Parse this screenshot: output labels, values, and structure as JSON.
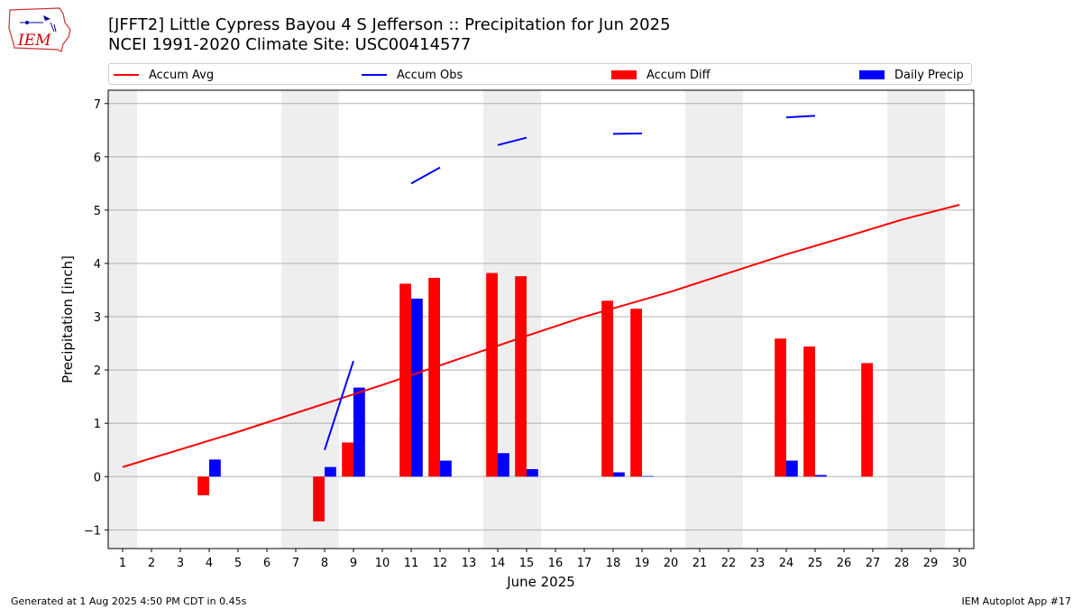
{
  "header": {
    "logo_text": "IEM",
    "title_line1": "[JFFT2] Little Cypress Bayou 4 S Jefferson :: Precipitation for Jun 2025",
    "title_line2": "NCEI 1991-2020 Climate Site: USC00414577"
  },
  "legend": {
    "accum_avg": "Accum Avg",
    "accum_obs": "Accum Obs",
    "accum_diff": "Accum Diff",
    "daily_precip": "Daily Precip"
  },
  "footer": {
    "generated": "Generated at 1 Aug 2025 4:50 PM CDT in 0.45s",
    "app": "IEM Autoplot App #17"
  },
  "colors": {
    "avg": "#ff0000",
    "obs": "#0000ff",
    "diff": "#ff0000",
    "daily": "#0000ff",
    "weekend_band": "#eeeeee",
    "grid": "#b0b0b0"
  },
  "chart_data": {
    "type": "bar",
    "title": "[JFFT2] Little Cypress Bayou 4 S Jefferson :: Precipitation for Jun 2025",
    "xlabel": "June 2025",
    "ylabel": "Precipitation [inch]",
    "x": [
      1,
      2,
      3,
      4,
      5,
      6,
      7,
      8,
      9,
      10,
      11,
      12,
      13,
      14,
      15,
      16,
      17,
      18,
      19,
      20,
      21,
      22,
      23,
      24,
      25,
      26,
      27,
      28,
      29,
      30
    ],
    "xlim": [
      0.5,
      30.5
    ],
    "ylim": [
      -1.35,
      7.25
    ],
    "yticks": [
      -1,
      0,
      1,
      2,
      3,
      4,
      5,
      6,
      7
    ],
    "grid": "horizontal",
    "legend_position": "top",
    "shaded_days": [
      [
        0.5,
        1.5
      ],
      [
        6.5,
        8.5
      ],
      [
        13.5,
        15.5
      ],
      [
        20.5,
        22.5
      ],
      [
        27.5,
        29.5
      ]
    ],
    "series": [
      {
        "name": "Accum Avg",
        "type": "line",
        "x": [
          1,
          5,
          10,
          15,
          17,
          20,
          22,
          24,
          26,
          28,
          30
        ],
        "values": [
          0.18,
          0.84,
          1.72,
          2.64,
          3.0,
          3.47,
          3.82,
          4.17,
          4.49,
          4.82,
          5.1
        ]
      },
      {
        "name": "Accum Obs",
        "type": "line_segments",
        "segments": [
          [
            [
              8,
              0.5
            ],
            [
              9,
              2.17
            ]
          ],
          [
            [
              11,
              5.5
            ],
            [
              12,
              5.8
            ]
          ],
          [
            [
              14,
              6.22
            ],
            [
              15,
              6.36
            ]
          ],
          [
            [
              18,
              6.43
            ],
            [
              19,
              6.44
            ]
          ],
          [
            [
              24,
              6.74
            ],
            [
              25,
              6.77
            ]
          ]
        ]
      },
      {
        "name": "Accum Diff",
        "type": "bar",
        "x": [
          4,
          8,
          9,
          11,
          12,
          14,
          15,
          18,
          19,
          24,
          25,
          27
        ],
        "values": [
          -0.35,
          -0.84,
          0.64,
          3.62,
          3.73,
          3.82,
          3.76,
          3.3,
          3.15,
          2.59,
          2.44,
          2.13
        ]
      },
      {
        "name": "Daily Precip",
        "type": "bar",
        "x": [
          4,
          8,
          9,
          11,
          12,
          14,
          15,
          18,
          19,
          24,
          25
        ],
        "values": [
          0.32,
          0.18,
          1.67,
          3.34,
          0.3,
          0.44,
          0.14,
          0.08,
          0.01,
          0.3,
          0.03
        ]
      }
    ]
  }
}
